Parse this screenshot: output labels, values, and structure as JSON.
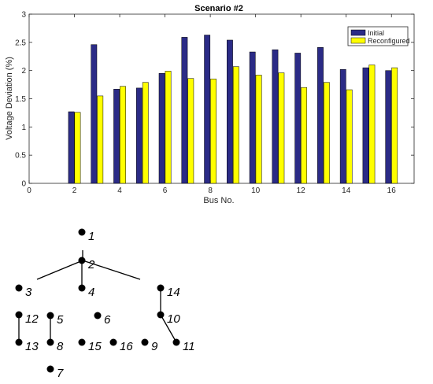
{
  "chart_data": {
    "type": "bar",
    "title": "Scenario #2",
    "xlabel": "Bus No.",
    "ylabel": "Voltage Deviation (%)",
    "xlim": [
      0,
      17
    ],
    "ylim": [
      0,
      3
    ],
    "xticks": [
      0,
      2,
      4,
      6,
      8,
      10,
      12,
      14,
      16
    ],
    "yticks": [
      0,
      0.5,
      1,
      1.5,
      2,
      2.5,
      3
    ],
    "legend_position": "top-right",
    "grid": false,
    "x": [
      2,
      3,
      4,
      5,
      6,
      7,
      8,
      9,
      10,
      11,
      12,
      13,
      14,
      15,
      16
    ],
    "series": [
      {
        "name": "Initial",
        "color": "#2b2b86",
        "values": [
          1.27,
          2.46,
          1.67,
          1.69,
          1.95,
          2.59,
          2.63,
          2.54,
          2.33,
          2.37,
          2.31,
          2.41,
          2.02,
          2.05,
          2.0
        ]
      },
      {
        "name": "Reconfigured",
        "color": "#ffff00",
        "values": [
          1.26,
          1.55,
          1.72,
          1.79,
          1.99,
          1.86,
          1.85,
          2.07,
          1.92,
          1.96,
          1.7,
          1.79,
          1.66,
          2.1,
          2.05
        ]
      }
    ]
  },
  "network": {
    "nodes": [
      {
        "id": "1",
        "label": "1"
      },
      {
        "id": "2",
        "label": "2"
      },
      {
        "id": "3",
        "label": "3"
      },
      {
        "id": "4",
        "label": "4"
      },
      {
        "id": "5",
        "label": "5"
      },
      {
        "id": "6",
        "label": "6"
      },
      {
        "id": "7",
        "label": "7"
      },
      {
        "id": "8",
        "label": "8"
      },
      {
        "id": "9",
        "label": "9"
      },
      {
        "id": "10",
        "label": "10"
      },
      {
        "id": "11",
        "label": "11"
      },
      {
        "id": "12",
        "label": "12"
      },
      {
        "id": "13",
        "label": "13"
      },
      {
        "id": "14",
        "label": "14"
      },
      {
        "id": "15",
        "label": "15"
      },
      {
        "id": "16",
        "label": "16"
      }
    ],
    "edges": [
      {
        "from": "2",
        "to": "4"
      },
      {
        "from": "12",
        "to": "13"
      },
      {
        "from": "5",
        "to": "8"
      },
      {
        "from": "14",
        "to": "10"
      },
      {
        "from": "10",
        "to": "11"
      }
    ]
  }
}
